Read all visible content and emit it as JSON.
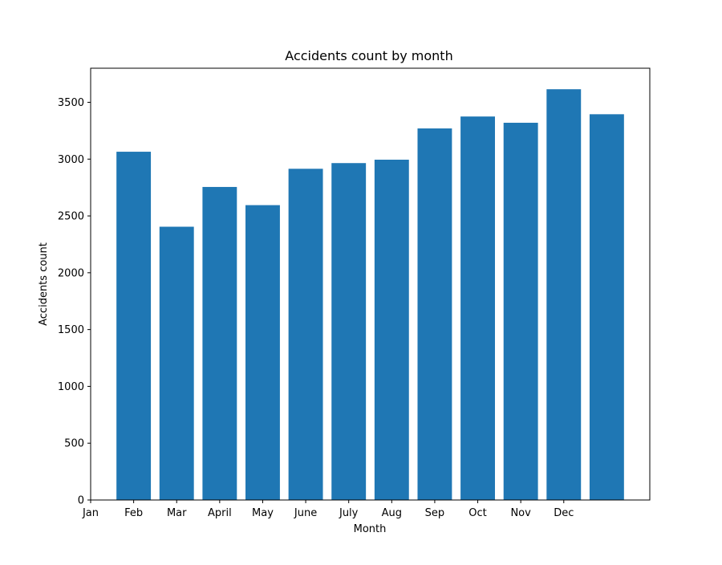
{
  "chart_data": {
    "type": "bar",
    "title": "Accidents count by month",
    "xlabel": "Month",
    "ylabel": "Accidents count",
    "x_tick_labels": [
      "Jan",
      "Feb",
      "Mar",
      "April",
      "May",
      "June",
      "July",
      "Aug",
      "Sep",
      "Oct",
      "Nov",
      "Dec"
    ],
    "bar_x": [
      1,
      2,
      3,
      4,
      5,
      6,
      7,
      8,
      9,
      10,
      11,
      12
    ],
    "values": [
      3065,
      2405,
      2755,
      2595,
      2915,
      2965,
      2995,
      3270,
      3375,
      3320,
      3615,
      3395
    ],
    "ylim": [
      0,
      3800
    ],
    "y_ticks": [
      0,
      500,
      1000,
      1500,
      2000,
      2500,
      3000,
      3500
    ],
    "bar_color": "#1f77b4",
    "grid": false,
    "legend": "none"
  }
}
